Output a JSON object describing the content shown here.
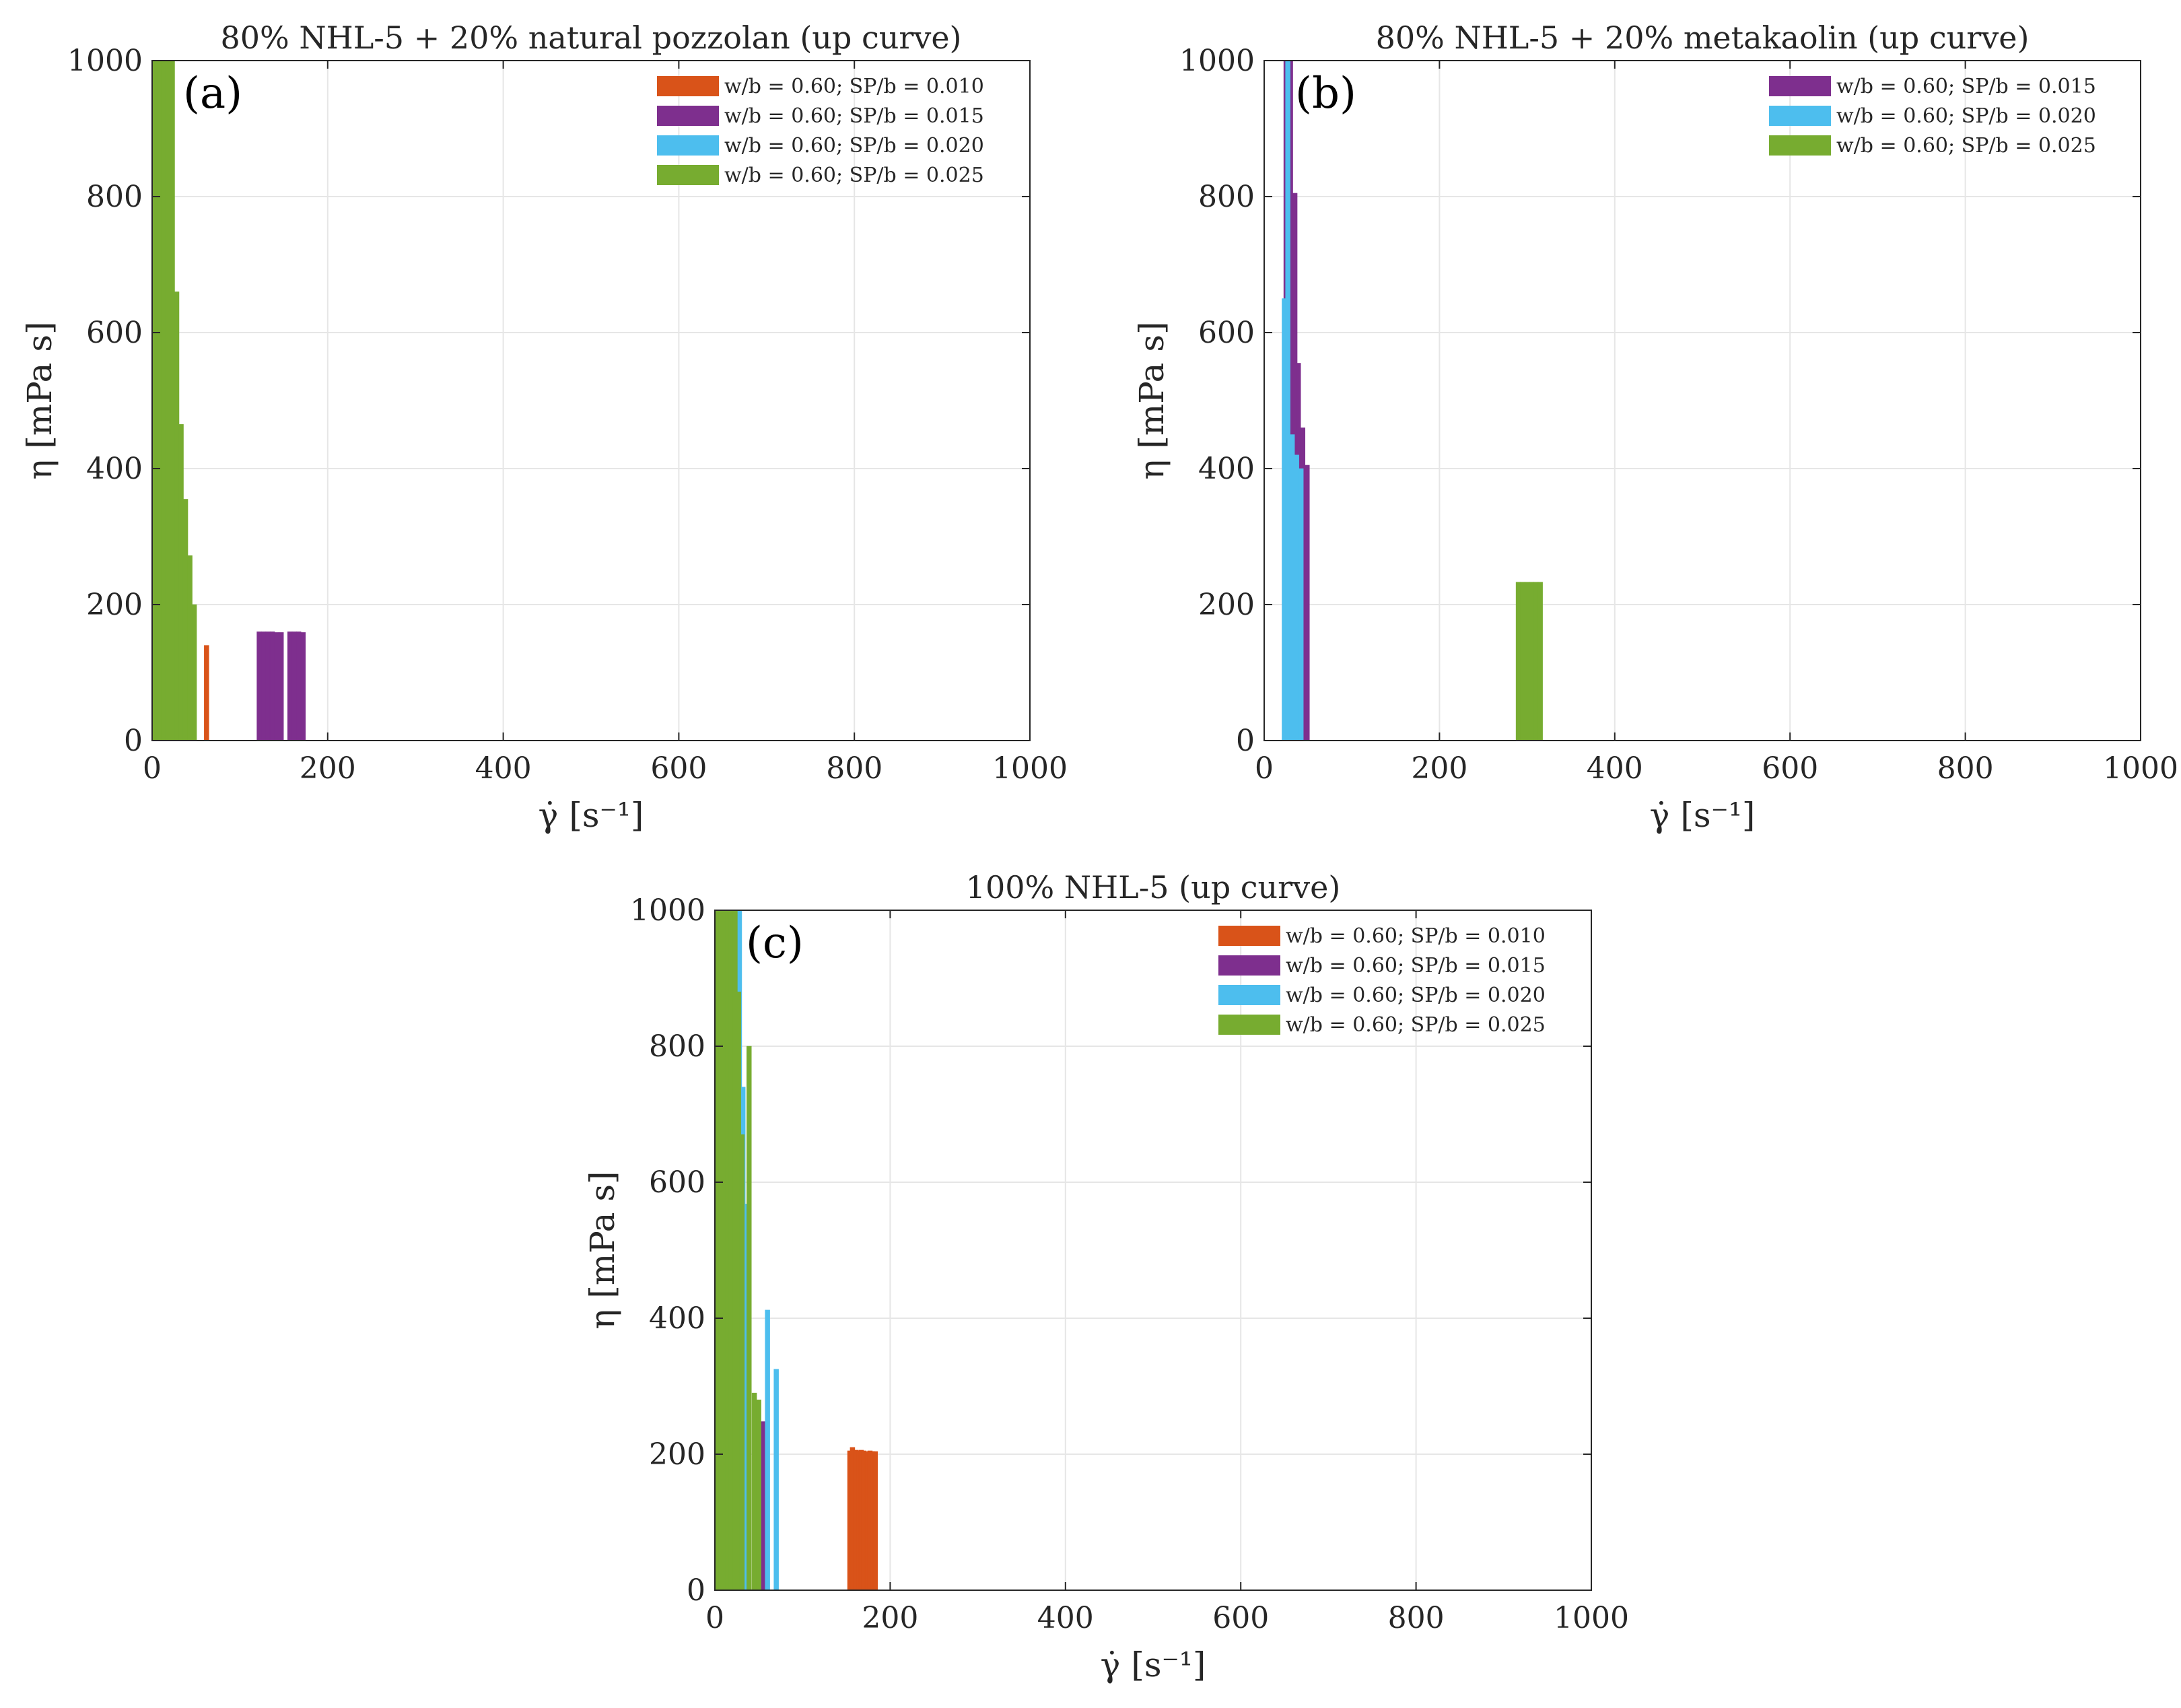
{
  "figure": {
    "colors": {
      "SP_0.010": "#D95319",
      "SP_0.015": "#7E2F8E",
      "SP_0.020": "#4DBEEE",
      "SP_0.025": "#77AC30"
    }
  },
  "chart_data": [
    {
      "type": "bar",
      "panel": "(a)",
      "title": "80% NHL-5 + 20% natural pozzolan (up curve)",
      "xlabel": "γ̇ [s⁻¹]",
      "ylabel": "η [mPa s]",
      "xlim": [
        0,
        1000
      ],
      "ylim": [
        0,
        1000
      ],
      "xticks": [
        "0",
        "200",
        "400",
        "600",
        "800",
        "1000"
      ],
      "yticks": [
        "0",
        "200",
        "400",
        "600",
        "800",
        "1000"
      ],
      "grid": true,
      "legend_position": "top-right",
      "series": [
        {
          "name": "w/b = 0.60; SP/b = 0.010",
          "color_key": "SP_0.010",
          "points": [
            [
              62,
              140
            ]
          ]
        },
        {
          "name": "w/b = 0.60; SP/b = 0.015",
          "color_key": "SP_0.015",
          "points": [
            [
              122,
              160
            ],
            [
              127,
              160
            ],
            [
              132,
              160
            ],
            [
              137,
              160
            ],
            [
              142,
              159
            ],
            [
              147,
              159
            ],
            [
              157,
              160
            ],
            [
              162,
              160
            ],
            [
              167,
              160
            ],
            [
              172,
              159
            ]
          ]
        },
        {
          "name": "w/b = 0.60; SP/b = 0.020",
          "color_key": "SP_0.020",
          "points": []
        },
        {
          "name": "w/b = 0.60; SP/b = 0.025",
          "color_key": "SP_0.025",
          "points": [
            [
              3,
              1000
            ],
            [
              8,
              1000
            ],
            [
              13,
              1000
            ],
            [
              18,
              1000
            ],
            [
              23,
              1000
            ],
            [
              28,
              660
            ],
            [
              33,
              465
            ],
            [
              38,
              355
            ],
            [
              43,
              272
            ],
            [
              48,
              200
            ]
          ]
        }
      ]
    },
    {
      "type": "bar",
      "panel": "(b)",
      "title": "80% NHL-5 + 20% metakaolin (up curve)",
      "xlabel": "γ̇ [s⁻¹]",
      "ylabel": "η [mPa s]",
      "xlim": [
        0,
        1000
      ],
      "ylim": [
        0,
        1000
      ],
      "xticks": [
        "0",
        "200",
        "400",
        "600",
        "800",
        "1000"
      ],
      "yticks": [
        "0",
        "200",
        "400",
        "600",
        "800",
        "1000"
      ],
      "grid": true,
      "legend_position": "top-right",
      "series": [
        {
          "name": "w/b = 0.60; SP/b = 0.015",
          "color_key": "SP_0.015",
          "points": [
            [
              25,
              1000
            ],
            [
              30,
              1000
            ],
            [
              35,
              805
            ],
            [
              39,
              555
            ],
            [
              44,
              460
            ],
            [
              49,
              405
            ]
          ]
        },
        {
          "name": "w/b = 0.60; SP/b = 0.020",
          "color_key": "SP_0.020",
          "points": [
            [
              23,
              650
            ],
            [
              27,
              1000
            ],
            [
              32,
              450
            ],
            [
              37,
              420
            ],
            [
              42,
              400
            ]
          ]
        },
        {
          "name": "w/b = 0.60; SP/b = 0.025",
          "color_key": "SP_0.025",
          "points": [
            [
              290,
              233
            ],
            [
              295,
              233
            ],
            [
              300,
              233
            ],
            [
              305,
              233
            ],
            [
              310,
              233
            ],
            [
              315,
              233
            ]
          ]
        }
      ]
    },
    {
      "type": "bar",
      "panel": "(c)",
      "title": "100% NHL-5 (up curve)",
      "xlabel": "γ̇ [s⁻¹]",
      "ylabel": "η [mPa s]",
      "xlim": [
        0,
        1000
      ],
      "ylim": [
        0,
        1000
      ],
      "xticks": [
        "0",
        "200",
        "400",
        "600",
        "800",
        "1000"
      ],
      "yticks": [
        "0",
        "200",
        "400",
        "600",
        "800",
        "1000"
      ],
      "grid": true,
      "legend_position": "top-right",
      "series": [
        {
          "name": "w/b = 0.60; SP/b = 0.010",
          "color_key": "SP_0.010",
          "points": [
            [
              154,
              205
            ],
            [
              157,
              210
            ],
            [
              161,
              206
            ],
            [
              164,
              205
            ],
            [
              167,
              206
            ],
            [
              170,
              205
            ],
            [
              174,
              204
            ],
            [
              177,
              205
            ],
            [
              180,
              204
            ],
            [
              183,
              204
            ]
          ]
        },
        {
          "name": "w/b = 0.60; SP/b = 0.015",
          "color_key": "SP_0.015",
          "points": [
            [
              55,
              248
            ]
          ]
        },
        {
          "name": "w/b = 0.60; SP/b = 0.020",
          "color_key": "SP_0.020",
          "points": [
            [
              28,
              1000
            ],
            [
              32,
              740
            ],
            [
              37,
              568
            ],
            [
              60,
              412
            ],
            [
              70,
              325
            ]
          ]
        },
        {
          "name": "w/b = 0.60; SP/b = 0.025",
          "color_key": "SP_0.025",
          "points": [
            [
              3,
              1000
            ],
            [
              7,
              1000
            ],
            [
              11,
              1000
            ],
            [
              15,
              1000
            ],
            [
              19,
              1000
            ],
            [
              23,
              1000
            ],
            [
              27,
              880
            ],
            [
              31,
              670
            ],
            [
              39,
              800
            ],
            [
              45,
              290
            ],
            [
              50,
              280
            ]
          ]
        }
      ]
    }
  ]
}
